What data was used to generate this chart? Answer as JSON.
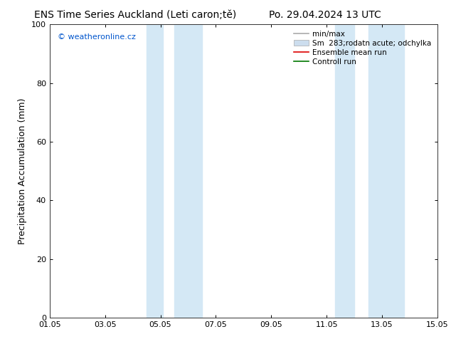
{
  "title_left": "ENS Time Series Auckland (Leti caron;tě)",
  "title_right": "Po. 29.04.2024 13 UTC",
  "ylabel": "Precipitation Accumulation (mm)",
  "watermark": "© weatheronline.cz",
  "watermark_color": "#0055cc",
  "ylim": [
    0,
    100
  ],
  "yticks": [
    0,
    20,
    40,
    60,
    80,
    100
  ],
  "xlim": [
    0,
    14
  ],
  "xtick_labels": [
    "01.05",
    "03.05",
    "05.05",
    "07.05",
    "09.05",
    "11.05",
    "13.05",
    "15.05"
  ],
  "xtick_positions": [
    0,
    2,
    4,
    6,
    8,
    10,
    12,
    14
  ],
  "shaded_regions": [
    {
      "x_start": 3.5,
      "x_end": 4.1,
      "color": "#d4e8f5"
    },
    {
      "x_start": 4.5,
      "x_end": 5.5,
      "color": "#d4e8f5"
    },
    {
      "x_start": 10.3,
      "x_end": 11.0,
      "color": "#d4e8f5"
    },
    {
      "x_start": 11.5,
      "x_end": 12.8,
      "color": "#d4e8f5"
    }
  ],
  "legend_entries": [
    {
      "label": "min/max",
      "color": "#aaaaaa",
      "lw": 1.2,
      "type": "line"
    },
    {
      "label": "Sm  283;rodatn acute; odchylka",
      "color": "#ccddee",
      "lw": 6,
      "type": "band"
    },
    {
      "label": "Ensemble mean run",
      "color": "#dd0000",
      "lw": 1.2,
      "type": "line"
    },
    {
      "label": "Controll run",
      "color": "#007700",
      "lw": 1.2,
      "type": "line"
    }
  ],
  "bg_color": "#ffffff",
  "plot_bg_color": "#ffffff",
  "border_color": "#333333",
  "title_fontsize": 10,
  "tick_fontsize": 8,
  "ylabel_fontsize": 9,
  "legend_fontsize": 7.5
}
